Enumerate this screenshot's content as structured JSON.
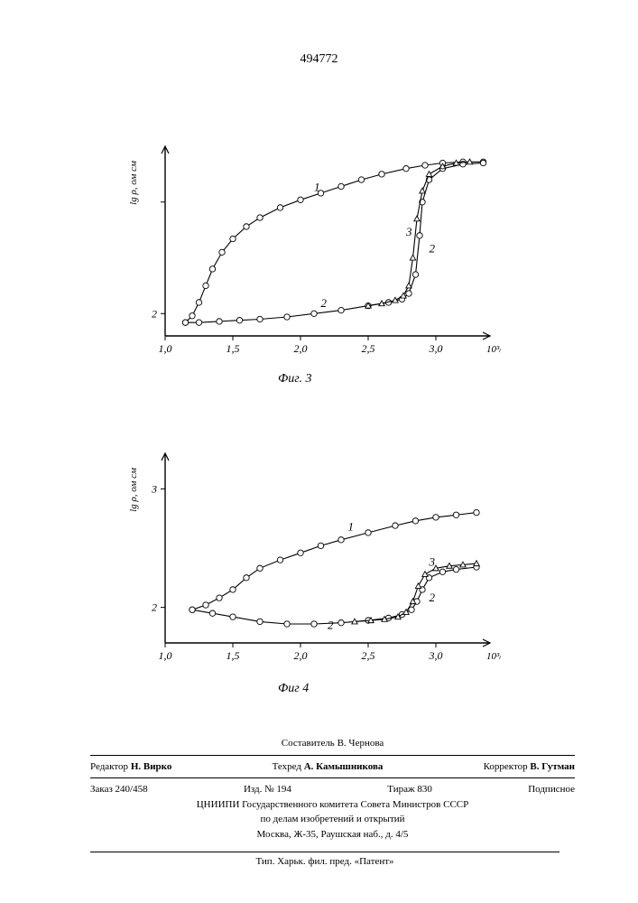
{
  "page_number": "494772",
  "chart3": {
    "type": "line",
    "ylabel_raw": "lg ρ, ом см",
    "xlabel_raw": "10³/T, °K⁻¹",
    "caption": "Фиг. 3",
    "xlim": [
      1.0,
      3.4
    ],
    "ylim": [
      1.8,
      3.5
    ],
    "xticks": [
      1.0,
      1.5,
      2.0,
      2.5,
      3.0
    ],
    "yticks": [
      2,
      3
    ],
    "yticklabels": [
      "2",
      ""
    ],
    "background_color": "#ffffff",
    "axis_color": "#000000",
    "marker_size": 3.2,
    "line_width": 1.1,
    "series": [
      {
        "label": "1",
        "marker": "circle-open",
        "color": "#000000",
        "x": [
          1.15,
          1.2,
          1.25,
          1.3,
          1.35,
          1.42,
          1.5,
          1.6,
          1.7,
          1.85,
          2.0,
          2.15,
          2.3,
          2.45,
          2.6,
          2.78,
          2.92,
          3.05,
          3.2,
          3.35
        ],
        "y": [
          1.92,
          1.98,
          2.1,
          2.25,
          2.4,
          2.55,
          2.67,
          2.78,
          2.86,
          2.95,
          3.02,
          3.08,
          3.14,
          3.2,
          3.25,
          3.3,
          3.33,
          3.35,
          3.36,
          3.36
        ]
      },
      {
        "label": "2",
        "marker": "circle-open",
        "color": "#000000",
        "x": [
          1.15,
          1.25,
          1.4,
          1.55,
          1.7,
          1.9,
          2.1,
          2.3,
          2.5,
          2.65,
          2.75,
          2.8,
          2.85,
          2.88,
          2.9,
          2.95,
          3.05,
          3.2,
          3.35
        ],
        "y": [
          1.92,
          1.92,
          1.93,
          1.94,
          1.95,
          1.97,
          2.0,
          2.03,
          2.07,
          2.1,
          2.13,
          2.18,
          2.35,
          2.7,
          3.0,
          3.2,
          3.3,
          3.34,
          3.35
        ]
      },
      {
        "label": "3",
        "marker": "triangle",
        "color": "#000000",
        "x": [
          2.5,
          2.6,
          2.7,
          2.76,
          2.8,
          2.83,
          2.86,
          2.9,
          2.95,
          3.05,
          3.15,
          3.25
        ],
        "y": [
          2.07,
          2.09,
          2.12,
          2.16,
          2.25,
          2.5,
          2.85,
          3.1,
          3.25,
          3.32,
          3.35,
          3.36
        ]
      }
    ],
    "series_label_positions": {
      "1": {
        "x": 2.1,
        "y": 3.1
      },
      "2": {
        "x": 2.15,
        "y": 2.06
      },
      "3": {
        "x": 2.78,
        "y": 2.7
      },
      "2b": {
        "x": 2.95,
        "y": 2.55
      }
    }
  },
  "chart4": {
    "type": "line",
    "ylabel_raw": "lg ρ, ом см",
    "xlabel_raw": "10³/T, °K⁻¹",
    "caption": "Фиг 4",
    "xlim": [
      1.0,
      3.4
    ],
    "ylim": [
      1.7,
      3.3
    ],
    "xticks": [
      1.0,
      1.5,
      2.0,
      2.5,
      3.0
    ],
    "yticks": [
      2,
      3
    ],
    "yticklabels": [
      "2",
      "3"
    ],
    "background_color": "#ffffff",
    "axis_color": "#000000",
    "marker_size": 3.2,
    "line_width": 1.1,
    "series": [
      {
        "label": "1",
        "marker": "circle-open",
        "color": "#000000",
        "x": [
          1.2,
          1.3,
          1.4,
          1.5,
          1.6,
          1.7,
          1.85,
          2.0,
          2.15,
          2.3,
          2.5,
          2.7,
          2.85,
          3.0,
          3.15,
          3.3
        ],
        "y": [
          1.98,
          2.02,
          2.08,
          2.15,
          2.25,
          2.33,
          2.4,
          2.46,
          2.52,
          2.57,
          2.63,
          2.69,
          2.73,
          2.76,
          2.78,
          2.8
        ]
      },
      {
        "label": "2",
        "marker": "circle-open",
        "color": "#000000",
        "x": [
          1.2,
          1.35,
          1.5,
          1.7,
          1.9,
          2.1,
          2.3,
          2.5,
          2.65,
          2.75,
          2.82,
          2.86,
          2.9,
          2.95,
          3.05,
          3.15,
          3.3
        ],
        "y": [
          1.98,
          1.95,
          1.92,
          1.88,
          1.86,
          1.86,
          1.87,
          1.89,
          1.91,
          1.94,
          1.98,
          2.05,
          2.15,
          2.25,
          2.3,
          2.32,
          2.34
        ]
      },
      {
        "label": "3",
        "marker": "triangle",
        "color": "#000000",
        "x": [
          2.4,
          2.52,
          2.62,
          2.72,
          2.78,
          2.83,
          2.87,
          2.92,
          3.0,
          3.1,
          3.2,
          3.3
        ],
        "y": [
          1.88,
          1.89,
          1.9,
          1.92,
          1.96,
          2.05,
          2.18,
          2.28,
          2.33,
          2.35,
          2.36,
          2.37
        ]
      }
    ],
    "series_label_positions": {
      "1": {
        "x": 2.35,
        "y": 2.65
      },
      "2": {
        "x": 2.2,
        "y": 1.82
      },
      "3": {
        "x": 2.95,
        "y": 2.35
      },
      "2b": {
        "x": 2.95,
        "y": 2.05
      }
    }
  },
  "footer": {
    "compiler": "Составитель В. Чернова",
    "editor_label": "Редактор",
    "editor": "Н. Вирко",
    "techred_label": "Техред",
    "techred": "А. Камышникова",
    "corrector_label": "Корректор",
    "corrector": "В. Гутман",
    "order": "Заказ 240/458",
    "issue": "Изд. № 194",
    "tirazh": "Тираж 830",
    "podpisnoe": "Подписное",
    "org1": "ЦНИИПИ Государственного комитета Совета Министров СССР",
    "org2": "по делам изобретений и открытий",
    "org3": "Москва, Ж-35, Раушская наб., д. 4/5",
    "printer": "Тип. Харьк. фил. пред. «Патент»"
  }
}
